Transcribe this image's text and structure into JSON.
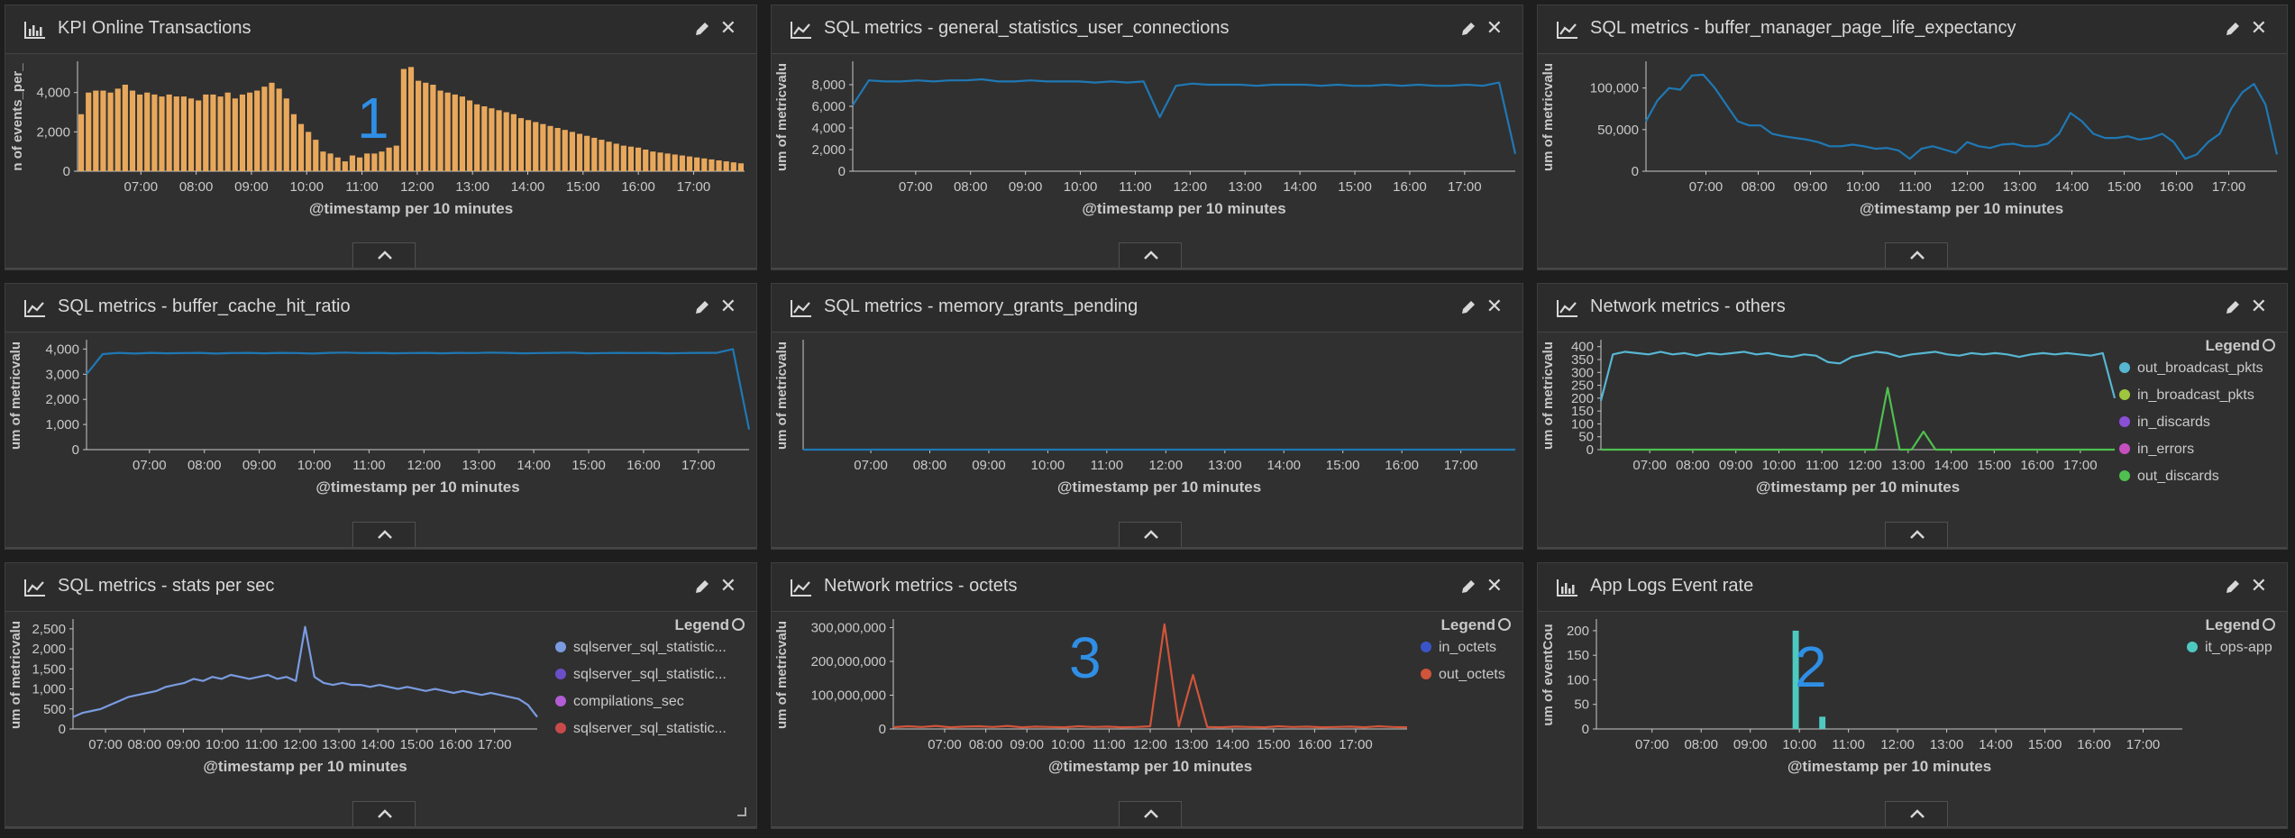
{
  "panels": [
    {
      "id": "p1",
      "title": "KPI Online Transactions",
      "icon": "bar-chart-icon",
      "annotation": "1",
      "chart_data": {
        "type": "bar",
        "ylabel": "n of events_per_",
        "xlabel": "@timestamp per 10 minutes",
        "yticks": [
          "0",
          "2,000",
          "4,000"
        ],
        "ylim": [
          0,
          5500
        ],
        "xticks": [
          "07:00",
          "08:00",
          "09:00",
          "10:00",
          "11:00",
          "12:00",
          "13:00",
          "14:00",
          "15:00",
          "16:00",
          "17:00"
        ],
        "series": [
          {
            "color": "#e8a85c",
            "values": [
              2900,
              4000,
              4100,
              4100,
              4000,
              4200,
              4400,
              4100,
              3900,
              4000,
              3900,
              3800,
              3900,
              3800,
              3800,
              3700,
              3600,
              3900,
              3900,
              3800,
              4000,
              3700,
              3900,
              4000,
              4100,
              4300,
              4500,
              4200,
              3700,
              2900,
              2400,
              2000,
              1600,
              1000,
              900,
              700,
              500,
              800,
              700,
              900,
              900,
              1000,
              1200,
              1300,
              5200,
              5300,
              4600,
              4500,
              4400,
              4100,
              4000,
              3900,
              3800,
              3600,
              3400,
              3300,
              3200,
              3100,
              3000,
              2900,
              2700,
              2600,
              2500,
              2400,
              2300,
              2200,
              2100,
              2000,
              1900,
              1800,
              1700,
              1600,
              1500,
              1400,
              1300,
              1250,
              1200,
              1100,
              1000,
              950,
              900,
              850,
              800,
              750,
              700,
              650,
              600,
              550,
              500,
              450,
              400
            ]
          }
        ]
      }
    },
    {
      "id": "p2",
      "title": "SQL metrics - general_statistics_user_connections",
      "icon": "line-chart-icon",
      "chart_data": {
        "type": "line",
        "ylabel": "um of metricvalu",
        "xlabel": "@timestamp per 10 minutes",
        "yticks": [
          "0",
          "2,000",
          "4,000",
          "6,000",
          "8,000"
        ],
        "ylim": [
          0,
          10000
        ],
        "xticks": [
          "07:00",
          "08:00",
          "09:00",
          "10:00",
          "11:00",
          "12:00",
          "13:00",
          "14:00",
          "15:00",
          "16:00",
          "17:00"
        ],
        "series": [
          {
            "color": "#1f78b4",
            "values": [
              6100,
              8400,
              8300,
              8300,
              8400,
              8300,
              8400,
              8400,
              8500,
              8300,
              8300,
              8400,
              8300,
              8300,
              8300,
              8200,
              8300,
              8200,
              8300,
              5000,
              7900,
              8100,
              8000,
              8000,
              8000,
              7900,
              8000,
              8000,
              8000,
              7900,
              8000,
              7900,
              7900,
              8000,
              7900,
              8000,
              7900,
              7900,
              8000,
              7900,
              8200,
              1600
            ]
          }
        ]
      }
    },
    {
      "id": "p3",
      "title": "SQL metrics - buffer_manager_page_life_expectancy",
      "icon": "line-chart-icon",
      "chart_data": {
        "type": "line",
        "ylabel": "um of metricvalu",
        "xlabel": "@timestamp per 10 minutes",
        "yticks": [
          "0",
          "50,000",
          "100,000"
        ],
        "ylim": [
          0,
          130000
        ],
        "xticks": [
          "07:00",
          "08:00",
          "09:00",
          "10:00",
          "11:00",
          "12:00",
          "13:00",
          "14:00",
          "15:00",
          "16:00",
          "17:00"
        ],
        "series": [
          {
            "color": "#1f78b4",
            "values": [
              60000,
              85000,
              100000,
              98000,
              115000,
              116000,
              100000,
              80000,
              60000,
              55000,
              55000,
              45000,
              42000,
              40000,
              38000,
              35000,
              30000,
              30000,
              32000,
              30000,
              27000,
              28000,
              25000,
              15000,
              27000,
              30000,
              26000,
              22000,
              35000,
              30000,
              28000,
              32000,
              33000,
              30000,
              30000,
              33000,
              45000,
              70000,
              60000,
              45000,
              40000,
              40000,
              42000,
              38000,
              40000,
              45000,
              35000,
              15000,
              20000,
              35000,
              45000,
              75000,
              95000,
              105000,
              80000,
              20000
            ]
          }
        ]
      }
    },
    {
      "id": "p4",
      "title": "SQL metrics - buffer_cache_hit_ratio",
      "icon": "line-chart-icon",
      "chart_data": {
        "type": "line",
        "ylabel": "um of metricvalu",
        "xlabel": "@timestamp per 10 minutes",
        "yticks": [
          "0",
          "1,000",
          "2,000",
          "3,000",
          "4,000"
        ],
        "ylim": [
          0,
          4300
        ],
        "xticks": [
          "07:00",
          "08:00",
          "09:00",
          "10:00",
          "11:00",
          "12:00",
          "13:00",
          "14:00",
          "15:00",
          "16:00",
          "17:00"
        ],
        "series": [
          {
            "color": "#1f78b4",
            "values": [
              3000,
              3800,
              3850,
              3820,
              3850,
              3830,
              3840,
              3850,
              3820,
              3840,
              3850,
              3830,
              3850,
              3840,
              3820,
              3850,
              3860,
              3840,
              3850,
              3830,
              3840,
              3850,
              3830,
              3850,
              3840,
              3860,
              3850,
              3830,
              3840,
              3850,
              3860,
              3830,
              3840,
              3850,
              3840,
              3850,
              3830,
              3840,
              3850,
              3850,
              4000,
              800
            ]
          }
        ]
      }
    },
    {
      "id": "p5",
      "title": "SQL metrics - memory_grants_pending",
      "icon": "line-chart-icon",
      "chart_data": {
        "type": "line",
        "ylabel": "um of metricvalu",
        "xlabel": "@timestamp per 10 minutes",
        "yticks": [],
        "ylim": [
          0,
          1
        ],
        "xticks": [
          "07:00",
          "08:00",
          "09:00",
          "10:00",
          "11:00",
          "12:00",
          "13:00",
          "14:00",
          "15:00",
          "16:00",
          "17:00"
        ],
        "series": [
          {
            "color": "#1f78b4",
            "values": [
              0,
              0,
              0,
              0,
              0,
              0,
              0,
              0,
              0,
              0,
              0,
              0,
              0,
              0,
              0,
              0,
              0,
              0,
              0,
              0,
              0,
              0,
              0,
              0,
              0,
              0,
              0,
              0,
              0,
              0,
              0,
              0,
              0,
              0,
              0,
              0,
              0,
              0,
              0,
              0
            ]
          }
        ]
      }
    },
    {
      "id": "p6",
      "title": "Network metrics - others",
      "icon": "line-chart-icon",
      "chart_data": {
        "type": "line",
        "ylabel": "um of metricvalu",
        "xlabel": "@timestamp per 10 minutes",
        "yticks": [
          "0",
          "50",
          "100",
          "150",
          "200",
          "250",
          "300",
          "350",
          "400"
        ],
        "ylim": [
          0,
          420
        ],
        "xticks": [
          "07:00",
          "08:00",
          "09:00",
          "10:00",
          "11:00",
          "12:00",
          "13:00",
          "14:00",
          "15:00",
          "16:00",
          "17:00"
        ],
        "legend_title": "Legend",
        "legend": [
          {
            "name": "out_broadcast_pkts",
            "color": "#57b6d2"
          },
          {
            "name": "in_broadcast_pkts",
            "color": "#9ec63e"
          },
          {
            "name": "in_discards",
            "color": "#8b4fd6"
          },
          {
            "name": "in_errors",
            "color": "#c64fc0"
          },
          {
            "name": "out_discards",
            "color": "#4fbf4f"
          }
        ],
        "series": [
          {
            "color": "#57b6d2",
            "values": [
              190,
              370,
              380,
              375,
              370,
              380,
              370,
              375,
              365,
              375,
              370,
              375,
              380,
              370,
              375,
              365,
              360,
              370,
              365,
              340,
              335,
              360,
              370,
              380,
              375,
              360,
              370,
              375,
              380,
              370,
              365,
              375,
              370,
              375,
              370,
              360,
              370,
              375,
              370,
              375,
              370,
              365,
              375,
              200
            ]
          },
          {
            "color": "#4fbf4f",
            "values": [
              0,
              0,
              0,
              0,
              0,
              0,
              0,
              0,
              0,
              0,
              0,
              0,
              0,
              0,
              0,
              0,
              0,
              0,
              0,
              0,
              0,
              0,
              0,
              0,
              240,
              0,
              0,
              70,
              0,
              0,
              0,
              0,
              0,
              0,
              0,
              0,
              0,
              0,
              0,
              0,
              0,
              0,
              0,
              0
            ]
          }
        ]
      }
    },
    {
      "id": "p7",
      "title": "SQL metrics - stats per sec",
      "icon": "line-chart-icon",
      "chart_data": {
        "type": "line",
        "ylabel": "um of metricvalu",
        "xlabel": "@timestamp per 10 minutes",
        "yticks": [
          "0",
          "500",
          "1,000",
          "1,500",
          "2,000",
          "2,500"
        ],
        "ylim": [
          0,
          2700
        ],
        "xticks": [
          "07:00",
          "08:00",
          "09:00",
          "10:00",
          "11:00",
          "12:00",
          "13:00",
          "14:00",
          "15:00",
          "16:00",
          "17:00"
        ],
        "legend_title": "Legend",
        "legend": [
          {
            "name": "sqlserver_sql_statistic...",
            "color": "#7a9be0"
          },
          {
            "name": "sqlserver_sql_statistic...",
            "color": "#6a4fc8"
          },
          {
            "name": "compilations_sec",
            "color": "#b45cd6"
          },
          {
            "name": "sqlserver_sql_statistic...",
            "color": "#c84a4a"
          }
        ],
        "series": [
          {
            "color": "#7a9be0",
            "values": [
              300,
              400,
              450,
              500,
              600,
              700,
              800,
              850,
              900,
              950,
              1050,
              1100,
              1150,
              1250,
              1200,
              1300,
              1250,
              1350,
              1300,
              1250,
              1300,
              1350,
              1250,
              1300,
              1200,
              2550,
              1300,
              1150,
              1100,
              1150,
              1100,
              1100,
              1050,
              1100,
              1050,
              1000,
              1050,
              1000,
              950,
              1000,
              950,
              900,
              950,
              900,
              850,
              900,
              850,
              800,
              750,
              600,
              300
            ]
          }
        ]
      }
    },
    {
      "id": "p8",
      "title": "Network metrics - octets",
      "icon": "line-chart-icon",
      "annotation": "3",
      "chart_data": {
        "type": "line",
        "ylabel": "um of metricvalu",
        "xlabel": "@timestamp per 10 minutes",
        "yticks": [
          "0",
          "100,000,000",
          "200,000,000",
          "300,000,000"
        ],
        "ylim": [
          0,
          320000000
        ],
        "xticks": [
          "07:00",
          "08:00",
          "09:00",
          "10:00",
          "11:00",
          "12:00",
          "13:00",
          "14:00",
          "15:00",
          "16:00",
          "17:00"
        ],
        "legend_title": "Legend",
        "legend": [
          {
            "name": "in_octets",
            "color": "#3a54c8"
          },
          {
            "name": "out_octets",
            "color": "#d0553a"
          }
        ],
        "series": [
          {
            "color": "#d0553a",
            "values": [
              5000000,
              8000000,
              6000000,
              9000000,
              5000000,
              7000000,
              8000000,
              6000000,
              9000000,
              5000000,
              7000000,
              6000000,
              5000000,
              8000000,
              6000000,
              7000000,
              5000000,
              6000000,
              8000000,
              310000000,
              8000000,
              160000000,
              6000000,
              5000000,
              7000000,
              6000000,
              5000000,
              8000000,
              6000000,
              7000000,
              5000000,
              6000000,
              7000000,
              5000000,
              8000000,
              6000000,
              5000000
            ]
          }
        ]
      }
    },
    {
      "id": "p9",
      "title": "App Logs Event rate",
      "icon": "bar-chart-icon",
      "annotation": "2",
      "chart_data": {
        "type": "bar",
        "ylabel": "um of eventCou",
        "xlabel": "@timestamp per 10 minutes",
        "yticks": [
          "0",
          "50",
          "100",
          "150",
          "200"
        ],
        "ylim": [
          0,
          220
        ],
        "xticks": [
          "07:00",
          "08:00",
          "09:00",
          "10:00",
          "11:00",
          "12:00",
          "13:00",
          "14:00",
          "15:00",
          "16:00",
          "17:00"
        ],
        "legend_title": "Legend",
        "legend": [
          {
            "name": "it_ops-app",
            "color": "#4ec9c0"
          }
        ],
        "series": [
          {
            "color": "#4ec9c0",
            "values": [
              0,
              0,
              0,
              0,
              0,
              0,
              0,
              0,
              0,
              0,
              0,
              0,
              0,
              0,
              0,
              0,
              0,
              0,
              0,
              0,
              0,
              0,
              200,
              0,
              0,
              25,
              0,
              0,
              0,
              0,
              0,
              0,
              0,
              0,
              0,
              0,
              0,
              0,
              0,
              0,
              0,
              0,
              0,
              0,
              0,
              0,
              0,
              0,
              0,
              0,
              0,
              0,
              0,
              0,
              0,
              0,
              0,
              0,
              0,
              0,
              0,
              0,
              0,
              0,
              0,
              0
            ]
          }
        ]
      }
    }
  ]
}
